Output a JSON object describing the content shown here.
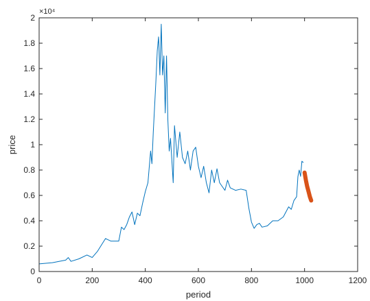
{
  "chart_data": {
    "type": "line",
    "title": "",
    "xlabel": "period",
    "ylabel": "price",
    "xlim": [
      0,
      1200
    ],
    "ylim": [
      0,
      20000
    ],
    "x_ticks": [
      0,
      200,
      400,
      600,
      800,
      1000,
      1200
    ],
    "x_tick_labels": [
      "0",
      "200",
      "400",
      "600",
      "800",
      "1000",
      "1200"
    ],
    "y_ticks": [
      0,
      2000,
      4000,
      6000,
      8000,
      10000,
      12000,
      14000,
      16000,
      18000,
      20000
    ],
    "y_tick_labels": [
      "0",
      "0.2",
      "0.4",
      "0.6",
      "0.8",
      "1",
      "1.2",
      "1.4",
      "1.6",
      "1.8",
      "2"
    ],
    "y_exponent_label": "×10⁴",
    "grid": false,
    "legend": "none",
    "series": [
      {
        "color": "#0072BD",
        "x": [
          0,
          50,
          100,
          110,
          120,
          150,
          180,
          200,
          220,
          250,
          270,
          300,
          310,
          320,
          330,
          340,
          350,
          360,
          370,
          380,
          390,
          400,
          410,
          420,
          425,
          430,
          440,
          445,
          450,
          455,
          460,
          465,
          470,
          475,
          480,
          485,
          490,
          495,
          500,
          505,
          510,
          520,
          530,
          540,
          550,
          560,
          570,
          580,
          590,
          600,
          610,
          620,
          630,
          640,
          650,
          660,
          670,
          680,
          690,
          700,
          710,
          720,
          740,
          760,
          780,
          790,
          800,
          810,
          820,
          830,
          840,
          860,
          880,
          900,
          920,
          940,
          950,
          960,
          970,
          975,
          980,
          985,
          990,
          995
        ],
        "y": [
          600,
          700,
          900,
          1100,
          800,
          1000,
          1300,
          1100,
          1600,
          2600,
          2400,
          2400,
          3500,
          3300,
          3700,
          4300,
          4700,
          3700,
          4600,
          4400,
          5400,
          6300,
          7000,
          9500,
          8500,
          11000,
          15000,
          17400,
          18500,
          15500,
          19500,
          15500,
          17000,
          12500,
          17000,
          12000,
          9500,
          10500,
          8800,
          7000,
          11500,
          9000,
          11000,
          9000,
          8500,
          9500,
          8000,
          9500,
          9800,
          8300,
          7400,
          8300,
          7000,
          6200,
          8000,
          7000,
          8100,
          7000,
          6700,
          6400,
          7200,
          6600,
          6400,
          6500,
          6400,
          5000,
          3900,
          3400,
          3700,
          3800,
          3500,
          3600,
          4000,
          4000,
          4300,
          5100,
          4900,
          5600,
          5900,
          7500,
          8000,
          7500,
          8700,
          8600
        ]
      },
      {
        "color": "#D95319",
        "x": [
          1000,
          1005,
          1010,
          1015,
          1020,
          1025
        ],
        "y": [
          7800,
          7200,
          6700,
          6300,
          5900,
          5600
        ]
      }
    ]
  }
}
